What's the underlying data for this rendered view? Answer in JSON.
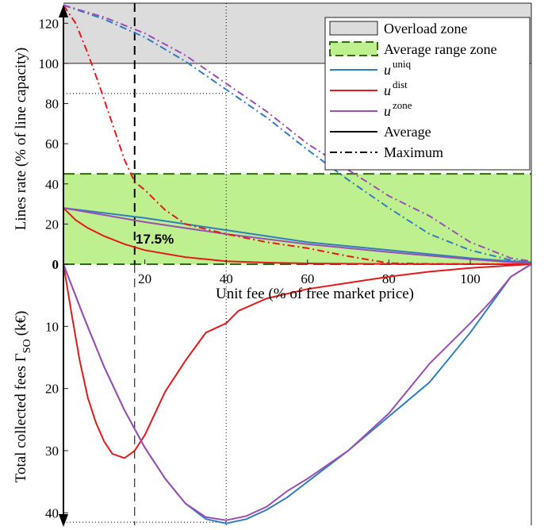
{
  "chart_data": [
    {
      "type": "line",
      "panel": "top",
      "xlabel": "Unit fee (% of free market price)",
      "ylabel": "Lines rate (% of line capacity)",
      "xlim": [
        0,
        115
      ],
      "ylim": [
        0,
        130
      ],
      "x_ticks": [
        20,
        40,
        60,
        80,
        100
      ],
      "y_ticks": [
        0,
        20,
        40,
        60,
        80,
        100,
        120
      ],
      "grid": false,
      "legend_position": "top-right",
      "zones": [
        {
          "name": "Overload zone",
          "y_range": [
            100,
            130
          ],
          "color": "#dcdcdc"
        },
        {
          "name": "Average range zone",
          "y_range": [
            0,
            45
          ],
          "color": "#bff08f",
          "border": "#2e6b12"
        }
      ],
      "legend": [
        {
          "label": "Overload zone",
          "kind": "zone-gray"
        },
        {
          "label": "Average range zone",
          "kind": "zone-green"
        },
        {
          "label": "u",
          "sup": "uniq",
          "kind": "line",
          "color": "#2f7ec1"
        },
        {
          "label": "u",
          "sup": "dist",
          "kind": "line",
          "color": "#e31a1c"
        },
        {
          "label": "u",
          "sup": "zone",
          "kind": "line",
          "color": "#9b4fb4"
        },
        {
          "label": "Average",
          "kind": "line",
          "color": "#000000",
          "dash": "solid"
        },
        {
          "label": "Maximum",
          "kind": "line",
          "color": "#000000",
          "dash": "dashdot"
        }
      ],
      "annotations": [
        {
          "text": "17.5%",
          "x": 19,
          "y": 13,
          "bold": true
        }
      ],
      "reference_lines": [
        {
          "orientation": "vertical",
          "x": 17.5,
          "style": "dashed"
        },
        {
          "orientation": "vertical",
          "x": 40,
          "style": "dotted"
        },
        {
          "orientation": "horizontal",
          "y": 85,
          "x_end": 40,
          "style": "dotted"
        }
      ],
      "series": [
        {
          "name": "u uniq Average",
          "color": "#2f7ec1",
          "dash": "solid",
          "x": [
            0,
            20,
            40,
            60,
            80,
            100,
            110,
            115
          ],
          "y": [
            28,
            23,
            17,
            11,
            7,
            3,
            1.5,
            1
          ]
        },
        {
          "name": "u dist Average",
          "color": "#e31a1c",
          "dash": "solid",
          "x": [
            0,
            3,
            6,
            10,
            15,
            20,
            30,
            40,
            50,
            60,
            80,
            100,
            115
          ],
          "y": [
            28,
            22,
            18,
            14,
            10,
            7,
            3.5,
            1.5,
            0.8,
            0.4,
            0.1,
            0.05,
            0
          ]
        },
        {
          "name": "u zone Average",
          "color": "#9b4fb4",
          "dash": "solid",
          "x": [
            0,
            20,
            40,
            60,
            80,
            100,
            110,
            115
          ],
          "y": [
            28,
            21,
            15,
            10,
            6,
            2.5,
            1,
            0.5
          ]
        },
        {
          "name": "u uniq Maximum",
          "color": "#2f7ec1",
          "dash": "dashdot",
          "x": [
            0,
            10,
            20,
            30,
            40,
            50,
            60,
            70,
            80,
            90,
            100,
            110,
            115
          ],
          "y": [
            129,
            122,
            113,
            101,
            87,
            73,
            57,
            42,
            28,
            15,
            7,
            2,
            1
          ]
        },
        {
          "name": "u dist Maximum",
          "color": "#e31a1c",
          "dash": "dashdot",
          "x": [
            0,
            3,
            6,
            9,
            12,
            15,
            17.5,
            20,
            25,
            30,
            40,
            50,
            60,
            70,
            80,
            90,
            100,
            115
          ],
          "y": [
            129,
            120,
            105,
            88,
            70,
            52,
            41,
            37,
            27,
            20,
            15,
            11,
            8,
            4,
            0.5,
            0.2,
            0.1,
            0
          ]
        },
        {
          "name": "u zone Maximum",
          "color": "#9b4fb4",
          "dash": "dashdot",
          "x": [
            0,
            10,
            20,
            30,
            40,
            50,
            60,
            70,
            80,
            90,
            100,
            110,
            115
          ],
          "y": [
            129,
            123,
            115,
            104,
            90,
            76,
            60,
            47,
            34,
            24,
            11,
            3,
            1.5
          ]
        }
      ]
    },
    {
      "type": "line",
      "panel": "bottom",
      "xlabel": "",
      "ylabel": "Total collected fees Γ SO (k€)",
      "xlim": [
        0,
        115
      ],
      "ylim": [
        0,
        42
      ],
      "y_inverted": true,
      "y_ticks": [
        10,
        20,
        30,
        40
      ],
      "grid": false,
      "reference_lines": [
        {
          "orientation": "vertical",
          "x": 17.5,
          "style": "dashed"
        },
        {
          "orientation": "vertical",
          "x": 40,
          "style": "dotted"
        },
        {
          "orientation": "horizontal",
          "y": 41.5,
          "x_end": 40,
          "style": "dotted"
        }
      ],
      "series": [
        {
          "name": "u uniq",
          "color": "#2f7ec1",
          "x": [
            0,
            5,
            10,
            15,
            20,
            25,
            30,
            35,
            40,
            45,
            50,
            55,
            60,
            70,
            80,
            90,
            100,
            105,
            110,
            115
          ],
          "y": [
            0,
            8.5,
            16.5,
            23.5,
            29.5,
            34.5,
            38.5,
            41,
            41.7,
            41,
            39.5,
            37.5,
            35,
            30,
            24.5,
            19,
            11,
            6.5,
            2,
            0
          ]
        },
        {
          "name": "u dist",
          "color": "#e31a1c",
          "x": [
            0,
            2,
            4,
            6,
            8,
            10,
            12,
            15,
            17.5,
            20,
            25,
            30,
            35,
            40,
            43,
            50,
            60,
            70,
            80,
            90,
            100,
            115
          ],
          "y": [
            0,
            8,
            15.5,
            21.5,
            25.5,
            28.5,
            30.5,
            31.2,
            30,
            27.5,
            20.5,
            15.5,
            11,
            9.5,
            7.5,
            5.5,
            4,
            3,
            2,
            1.2,
            0.6,
            0
          ]
        },
        {
          "name": "u zone",
          "color": "#9b4fb4",
          "x": [
            0,
            5,
            10,
            15,
            20,
            25,
            30,
            35,
            40,
            45,
            50,
            55,
            60,
            70,
            80,
            90,
            100,
            105,
            110,
            115
          ],
          "y": [
            0,
            8.5,
            16.5,
            23.5,
            29.5,
            34.5,
            38.5,
            40.7,
            41.2,
            40.5,
            39,
            36.5,
            34.5,
            30,
            24,
            16,
            9.5,
            6,
            2,
            0
          ]
        }
      ]
    }
  ],
  "texts": {
    "top_ylabel": "Lines rate (% of line capacity)",
    "bottom_ylabel": "Total collected fees Γ",
    "bottom_ylabel_sub": "SO",
    "bottom_ylabel_unit": "(k€)",
    "xlabel": "Unit fee (% of free market price)",
    "annotation": "17.5%"
  },
  "colors": {
    "uniq": "#2f7ec1",
    "dist": "#e31a1c",
    "zone": "#9b4fb4",
    "overload": "#dcdcdc",
    "average_zone": "#bff08f",
    "average_zone_border": "#2e6b12"
  }
}
